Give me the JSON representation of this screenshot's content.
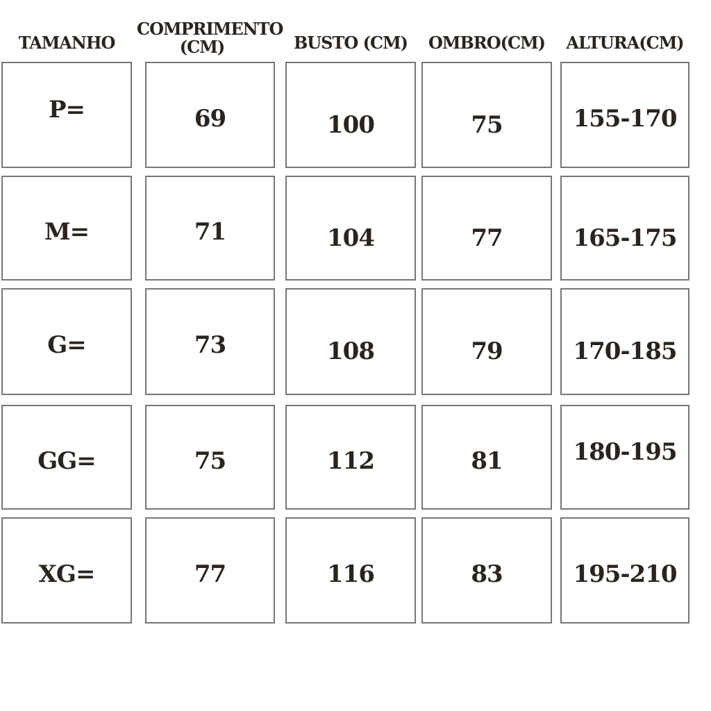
{
  "colors": {
    "text": "#2b241e",
    "border": "#767676",
    "background": "#ffffff"
  },
  "chart_data": {
    "type": "table",
    "columns": [
      "TAMANHO",
      "COMPRIMENTO (CM)",
      "BUSTO (CM)",
      "OMBRO(CM)",
      "ALTURA(CM)"
    ],
    "header_display": {
      "comprimento_line1": "COMPRIMENTO",
      "comprimento_line2": "(CM)"
    },
    "rows": [
      [
        "P=",
        "69",
        "100",
        "75",
        "155-170"
      ],
      [
        "M=",
        "71",
        "104",
        "77",
        "165-175"
      ],
      [
        "G=",
        "73",
        "108",
        "79",
        "170-185"
      ],
      [
        "GG=",
        "75",
        "112",
        "81",
        "180-195"
      ],
      [
        "XG=",
        "77",
        "116",
        "83",
        "195-210"
      ]
    ],
    "units": "cm"
  }
}
